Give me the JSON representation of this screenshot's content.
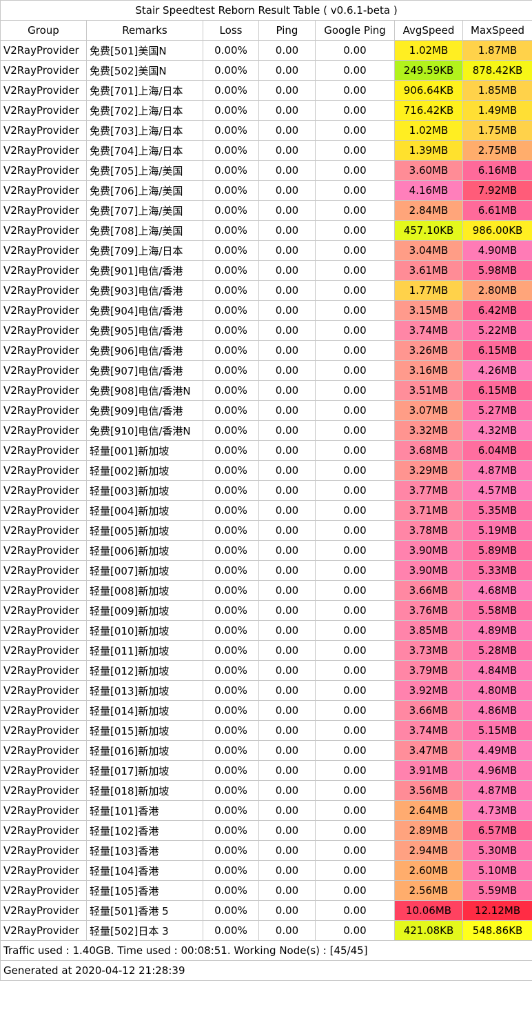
{
  "title": "Stair Speedtest Reborn Result Table ( v0.6.1-beta )",
  "headers": [
    "Group",
    "Remarks",
    "Loss",
    "Ping",
    "Google Ping",
    "AvgSpeed",
    "MaxSpeed"
  ],
  "rows": [
    {
      "group": "V2RayProvider",
      "remarks": "免费[501]美国N",
      "loss": "0.00%",
      "ping": "0.00",
      "gping": "0.00",
      "avg": "1.02MB",
      "max": "1.87MB",
      "avg_color": "#ffee22",
      "max_color": "#ffd24a"
    },
    {
      "group": "V2RayProvider",
      "remarks": "免费[502]美国N",
      "loss": "0.00%",
      "ping": "0.00",
      "gping": "0.00",
      "avg": "249.59KB",
      "max": "878.42KB",
      "avg_color": "#b2f21c",
      "max_color": "#f6f617"
    },
    {
      "group": "V2RayProvider",
      "remarks": "免费[701]上海/日本",
      "loss": "0.00%",
      "ping": "0.00",
      "gping": "0.00",
      "avg": "906.64KB",
      "max": "1.85MB",
      "avg_color": "#fff11c",
      "max_color": "#ffd24a"
    },
    {
      "group": "V2RayProvider",
      "remarks": "免费[702]上海/日本",
      "loss": "0.00%",
      "ping": "0.00",
      "gping": "0.00",
      "avg": "716.42KB",
      "max": "1.49MB",
      "avg_color": "#fff11c",
      "max_color": "#ffdf34"
    },
    {
      "group": "V2RayProvider",
      "remarks": "免费[703]上海/日本",
      "loss": "0.00%",
      "ping": "0.00",
      "gping": "0.00",
      "avg": "1.02MB",
      "max": "1.75MB",
      "avg_color": "#ffee22",
      "max_color": "#ffd24a"
    },
    {
      "group": "V2RayProvider",
      "remarks": "免费[704]上海/日本",
      "loss": "0.00%",
      "ping": "0.00",
      "gping": "0.00",
      "avg": "1.39MB",
      "max": "2.75MB",
      "avg_color": "#ffe12d",
      "max_color": "#ffad6c"
    },
    {
      "group": "V2RayProvider",
      "remarks": "免费[705]上海/美国",
      "loss": "0.00%",
      "ping": "0.00",
      "gping": "0.00",
      "avg": "3.60MB",
      "max": "6.16MB",
      "avg_color": "#ff8c96",
      "max_color": "#ff6a9a"
    },
    {
      "group": "V2RayProvider",
      "remarks": "免费[706]上海/美国",
      "loss": "0.00%",
      "ping": "0.00",
      "gping": "0.00",
      "avg": "4.16MB",
      "max": "7.92MB",
      "avg_color": "#ff7fbb",
      "max_color": "#ff5c79"
    },
    {
      "group": "V2RayProvider",
      "remarks": "免费[707]上海/美国",
      "loss": "0.00%",
      "ping": "0.00",
      "gping": "0.00",
      "avg": "2.84MB",
      "max": "6.61MB",
      "avg_color": "#ffa57a",
      "max_color": "#ff6a9a"
    },
    {
      "group": "V2RayProvider",
      "remarks": "免费[708]上海/美国",
      "loss": "0.00%",
      "ping": "0.00",
      "gping": "0.00",
      "avg": "457.10KB",
      "max": "986.00KB",
      "avg_color": "#e4f81c",
      "max_color": "#ffee22"
    },
    {
      "group": "V2RayProvider",
      "remarks": "免费[709]上海/日本",
      "loss": "0.00%",
      "ping": "0.00",
      "gping": "0.00",
      "avg": "3.04MB",
      "max": "4.90MB",
      "avg_color": "#ff9d86",
      "max_color": "#ff7bb6"
    },
    {
      "group": "V2RayProvider",
      "remarks": "免费[901]电信/香港",
      "loss": "0.00%",
      "ping": "0.00",
      "gping": "0.00",
      "avg": "3.61MB",
      "max": "5.98MB",
      "avg_color": "#ff8c96",
      "max_color": "#ff6e9f"
    },
    {
      "group": "V2RayProvider",
      "remarks": "免费[903]电信/香港",
      "loss": "0.00%",
      "ping": "0.00",
      "gping": "0.00",
      "avg": "1.77MB",
      "max": "2.80MB",
      "avg_color": "#ffd24a",
      "max_color": "#ffa57a"
    },
    {
      "group": "V2RayProvider",
      "remarks": "免费[904]电信/香港",
      "loss": "0.00%",
      "ping": "0.00",
      "gping": "0.00",
      "avg": "3.15MB",
      "max": "6.42MB",
      "avg_color": "#ff9a8c",
      "max_color": "#ff6a9a"
    },
    {
      "group": "V2RayProvider",
      "remarks": "免费[905]电信/香港",
      "loss": "0.00%",
      "ping": "0.00",
      "gping": "0.00",
      "avg": "3.74MB",
      "max": "5.22MB",
      "avg_color": "#ff86a6",
      "max_color": "#ff75ad"
    },
    {
      "group": "V2RayProvider",
      "remarks": "免费[906]电信/香港",
      "loss": "0.00%",
      "ping": "0.00",
      "gping": "0.00",
      "avg": "3.26MB",
      "max": "6.15MB",
      "avg_color": "#ff9690",
      "max_color": "#ff6a9a"
    },
    {
      "group": "V2RayProvider",
      "remarks": "免费[907]电信/香港",
      "loss": "0.00%",
      "ping": "0.00",
      "gping": "0.00",
      "avg": "3.16MB",
      "max": "4.26MB",
      "avg_color": "#ff9a8c",
      "max_color": "#ff7fbb"
    },
    {
      "group": "V2RayProvider",
      "remarks": "免费[908]电信/香港N",
      "loss": "0.00%",
      "ping": "0.00",
      "gping": "0.00",
      "avg": "3.51MB",
      "max": "6.15MB",
      "avg_color": "#ff8e9a",
      "max_color": "#ff6a9a"
    },
    {
      "group": "V2RayProvider",
      "remarks": "免费[909]电信/香港",
      "loss": "0.00%",
      "ping": "0.00",
      "gping": "0.00",
      "avg": "3.07MB",
      "max": "5.27MB",
      "avg_color": "#ff9d86",
      "max_color": "#ff75ad"
    },
    {
      "group": "V2RayProvider",
      "remarks": "免费[910]电信/香港N",
      "loss": "0.00%",
      "ping": "0.00",
      "gping": "0.00",
      "avg": "3.32MB",
      "max": "4.32MB",
      "avg_color": "#ff9490",
      "max_color": "#ff7fbb"
    },
    {
      "group": "V2RayProvider",
      "remarks": "轻量[001]新加坡",
      "loss": "0.00%",
      "ping": "0.00",
      "gping": "0.00",
      "avg": "3.68MB",
      "max": "6.04MB",
      "avg_color": "#ff88a2",
      "max_color": "#ff6e9f"
    },
    {
      "group": "V2RayProvider",
      "remarks": "轻量[002]新加坡",
      "loss": "0.00%",
      "ping": "0.00",
      "gping": "0.00",
      "avg": "3.29MB",
      "max": "4.87MB",
      "avg_color": "#ff9490",
      "max_color": "#ff7bb6"
    },
    {
      "group": "V2RayProvider",
      "remarks": "轻量[003]新加坡",
      "loss": "0.00%",
      "ping": "0.00",
      "gping": "0.00",
      "avg": "3.77MB",
      "max": "4.57MB",
      "avg_color": "#ff86a6",
      "max_color": "#ff7dba"
    },
    {
      "group": "V2RayProvider",
      "remarks": "轻量[004]新加坡",
      "loss": "0.00%",
      "ping": "0.00",
      "gping": "0.00",
      "avg": "3.71MB",
      "max": "5.35MB",
      "avg_color": "#ff88a2",
      "max_color": "#ff73a8"
    },
    {
      "group": "V2RayProvider",
      "remarks": "轻量[005]新加坡",
      "loss": "0.00%",
      "ping": "0.00",
      "gping": "0.00",
      "avg": "3.78MB",
      "max": "5.19MB",
      "avg_color": "#ff86a6",
      "max_color": "#ff75ad"
    },
    {
      "group": "V2RayProvider",
      "remarks": "轻量[006]新加坡",
      "loss": "0.00%",
      "ping": "0.00",
      "gping": "0.00",
      "avg": "3.90MB",
      "max": "5.89MB",
      "avg_color": "#ff82ae",
      "max_color": "#ff70a3"
    },
    {
      "group": "V2RayProvider",
      "remarks": "轻量[007]新加坡",
      "loss": "0.00%",
      "ping": "0.00",
      "gping": "0.00",
      "avg": "3.90MB",
      "max": "5.33MB",
      "avg_color": "#ff82ae",
      "max_color": "#ff73a8"
    },
    {
      "group": "V2RayProvider",
      "remarks": "轻量[008]新加坡",
      "loss": "0.00%",
      "ping": "0.00",
      "gping": "0.00",
      "avg": "3.66MB",
      "max": "4.68MB",
      "avg_color": "#ff88a2",
      "max_color": "#ff7dba"
    },
    {
      "group": "V2RayProvider",
      "remarks": "轻量[009]新加坡",
      "loss": "0.00%",
      "ping": "0.00",
      "gping": "0.00",
      "avg": "3.76MB",
      "max": "5.58MB",
      "avg_color": "#ff86a6",
      "max_color": "#ff73a8"
    },
    {
      "group": "V2RayProvider",
      "remarks": "轻量[010]新加坡",
      "loss": "0.00%",
      "ping": "0.00",
      "gping": "0.00",
      "avg": "3.85MB",
      "max": "4.89MB",
      "avg_color": "#ff84aa",
      "max_color": "#ff7bb6"
    },
    {
      "group": "V2RayProvider",
      "remarks": "轻量[011]新加坡",
      "loss": "0.00%",
      "ping": "0.00",
      "gping": "0.00",
      "avg": "3.73MB",
      "max": "5.28MB",
      "avg_color": "#ff86a6",
      "max_color": "#ff75ad"
    },
    {
      "group": "V2RayProvider",
      "remarks": "轻量[012]新加坡",
      "loss": "0.00%",
      "ping": "0.00",
      "gping": "0.00",
      "avg": "3.79MB",
      "max": "4.84MB",
      "avg_color": "#ff86a6",
      "max_color": "#ff7bb6"
    },
    {
      "group": "V2RayProvider",
      "remarks": "轻量[013]新加坡",
      "loss": "0.00%",
      "ping": "0.00",
      "gping": "0.00",
      "avg": "3.92MB",
      "max": "4.80MB",
      "avg_color": "#ff82ae",
      "max_color": "#ff7bb6"
    },
    {
      "group": "V2RayProvider",
      "remarks": "轻量[014]新加坡",
      "loss": "0.00%",
      "ping": "0.00",
      "gping": "0.00",
      "avg": "3.66MB",
      "max": "4.86MB",
      "avg_color": "#ff88a2",
      "max_color": "#ff7bb6"
    },
    {
      "group": "V2RayProvider",
      "remarks": "轻量[015]新加坡",
      "loss": "0.00%",
      "ping": "0.00",
      "gping": "0.00",
      "avg": "3.74MB",
      "max": "5.15MB",
      "avg_color": "#ff86a6",
      "max_color": "#ff75ad"
    },
    {
      "group": "V2RayProvider",
      "remarks": "轻量[016]新加坡",
      "loss": "0.00%",
      "ping": "0.00",
      "gping": "0.00",
      "avg": "3.47MB",
      "max": "4.49MB",
      "avg_color": "#ff8e9a",
      "max_color": "#ff7fbb"
    },
    {
      "group": "V2RayProvider",
      "remarks": "轻量[017]新加坡",
      "loss": "0.00%",
      "ping": "0.00",
      "gping": "0.00",
      "avg": "3.91MB",
      "max": "4.96MB",
      "avg_color": "#ff82ae",
      "max_color": "#ff7bb6"
    },
    {
      "group": "V2RayProvider",
      "remarks": "轻量[018]新加坡",
      "loss": "0.00%",
      "ping": "0.00",
      "gping": "0.00",
      "avg": "3.56MB",
      "max": "4.87MB",
      "avg_color": "#ff8c96",
      "max_color": "#ff7bb6"
    },
    {
      "group": "V2RayProvider",
      "remarks": "轻量[101]香港",
      "loss": "0.00%",
      "ping": "0.00",
      "gping": "0.00",
      "avg": "2.64MB",
      "max": "4.73MB",
      "avg_color": "#ffab70",
      "max_color": "#ff7dba"
    },
    {
      "group": "V2RayProvider",
      "remarks": "轻量[102]香港",
      "loss": "0.00%",
      "ping": "0.00",
      "gping": "0.00",
      "avg": "2.89MB",
      "max": "6.57MB",
      "avg_color": "#ffa37e",
      "max_color": "#ff6a9a"
    },
    {
      "group": "V2RayProvider",
      "remarks": "轻量[103]香港",
      "loss": "0.00%",
      "ping": "0.00",
      "gping": "0.00",
      "avg": "2.94MB",
      "max": "5.30MB",
      "avg_color": "#ffa182",
      "max_color": "#ff75ad"
    },
    {
      "group": "V2RayProvider",
      "remarks": "轻量[104]香港",
      "loss": "0.00%",
      "ping": "0.00",
      "gping": "0.00",
      "avg": "2.60MB",
      "max": "5.10MB",
      "avg_color": "#ffad6c",
      "max_color": "#ff77b1"
    },
    {
      "group": "V2RayProvider",
      "remarks": "轻量[105]香港",
      "loss": "0.00%",
      "ping": "0.00",
      "gping": "0.00",
      "avg": "2.56MB",
      "max": "5.59MB",
      "avg_color": "#ffad6c",
      "max_color": "#ff73a8"
    },
    {
      "group": "V2RayProvider",
      "remarks": "轻量[501]香港 5",
      "loss": "0.00%",
      "ping": "0.00",
      "gping": "0.00",
      "avg": "10.06MB",
      "max": "12.12MB",
      "avg_color": "#ff4260",
      "max_color": "#ff2c44"
    },
    {
      "group": "V2RayProvider",
      "remarks": "轻量[502]日本 3",
      "loss": "0.00%",
      "ping": "0.00",
      "gping": "0.00",
      "avg": "421.08KB",
      "max": "548.86KB",
      "avg_color": "#e4f81c",
      "max_color": "#ffff1c"
    }
  ],
  "footer": {
    "traffic": "Traffic used : 1.40GB. Time used : 00:08:51. Working Node(s) : [45/45]",
    "generated": "Generated at 2020-04-12 21:28:39"
  }
}
